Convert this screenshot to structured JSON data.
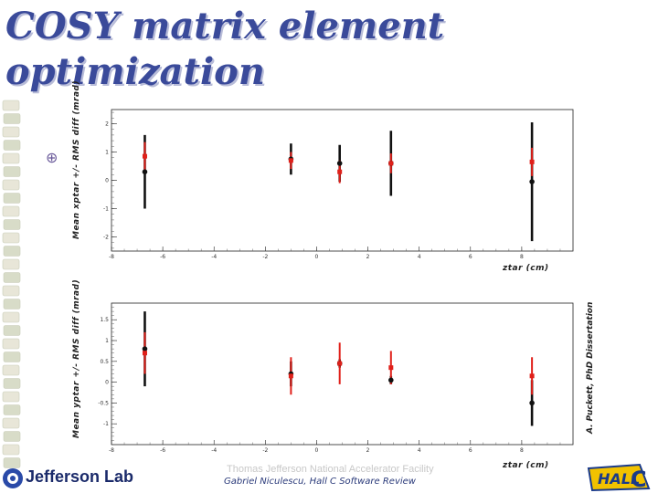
{
  "slide": {
    "title_line1": "COSY matrix element",
    "title_line2": "optimization",
    "footer": "Gabriel Niculescu, Hall C Software Review",
    "footer_faint": "Thomas Jefferson National Accelerator Facility",
    "logo_left": "Jefferson Lab",
    "logo_right": "Hall C",
    "credit": "A. Puckett, PhD Dissertation"
  },
  "colors": {
    "title": "#3a4a9a",
    "series_black": "#111111",
    "series_red": "#e0201a"
  },
  "chart_data": [
    {
      "type": "scatter",
      "ylabel": "Mean xptar +/- RMS diff (mrad)",
      "xlabel": "ztar (cm)",
      "xlim": [
        -8,
        10
      ],
      "ylim": [
        -2.5,
        2.5
      ],
      "xticks": [
        -8,
        -6,
        -4,
        -2,
        0,
        2,
        4,
        6,
        8
      ],
      "yticks": [
        -2,
        -1,
        0,
        1,
        2
      ],
      "grid": false,
      "series": [
        {
          "color": "#111111",
          "points": [
            {
              "x": -6.7,
              "y": 0.3,
              "err": 1.3
            },
            {
              "x": -1.0,
              "y": 0.75,
              "err": 0.55
            },
            {
              "x": 0.9,
              "y": 0.6,
              "err": 0.65
            },
            {
              "x": 2.9,
              "y": 0.6,
              "err": 1.15
            },
            {
              "x": 8.4,
              "y": -0.05,
              "err": 2.1
            }
          ]
        },
        {
          "color": "#e0201a",
          "points": [
            {
              "x": -6.7,
              "y": 0.85,
              "err": 0.5
            },
            {
              "x": -1.0,
              "y": 0.7,
              "err": 0.3
            },
            {
              "x": 0.9,
              "y": 0.3,
              "err": 0.4
            },
            {
              "x": 2.9,
              "y": 0.6,
              "err": 0.35
            },
            {
              "x": 8.4,
              "y": 0.65,
              "err": 0.5
            }
          ]
        }
      ]
    },
    {
      "type": "scatter",
      "ylabel": "Mean yptar +/- RMS diff (mrad)",
      "xlabel": "ztar (cm)",
      "xlim": [
        -8,
        10
      ],
      "ylim": [
        -1.5,
        1.9
      ],
      "xticks": [
        -8,
        -6,
        -4,
        -2,
        0,
        2,
        4,
        6,
        8
      ],
      "yticks": [
        -1,
        -0.5,
        0,
        0.5,
        1,
        1.5
      ],
      "ytick_labels": [
        "-1",
        "-0.5",
        "0",
        "0.5",
        "1",
        "1.5"
      ],
      "grid": false,
      "series": [
        {
          "color": "#111111",
          "points": [
            {
              "x": -6.7,
              "y": 0.8,
              "err": 0.9
            },
            {
              "x": -1.0,
              "y": 0.2,
              "err": 0.3
            },
            {
              "x": 0.9,
              "y": 0.45,
              "err": 0.1
            },
            {
              "x": 2.9,
              "y": 0.05,
              "err": 0.1
            },
            {
              "x": 8.4,
              "y": -0.5,
              "err": 0.55
            }
          ]
        },
        {
          "color": "#e0201a",
          "points": [
            {
              "x": -6.7,
              "y": 0.7,
              "err": 0.5
            },
            {
              "x": -1.0,
              "y": 0.15,
              "err": 0.45
            },
            {
              "x": 0.9,
              "y": 0.45,
              "err": 0.5
            },
            {
              "x": 2.9,
              "y": 0.35,
              "err": 0.4
            },
            {
              "x": 8.4,
              "y": 0.15,
              "err": 0.45
            }
          ]
        }
      ]
    }
  ]
}
